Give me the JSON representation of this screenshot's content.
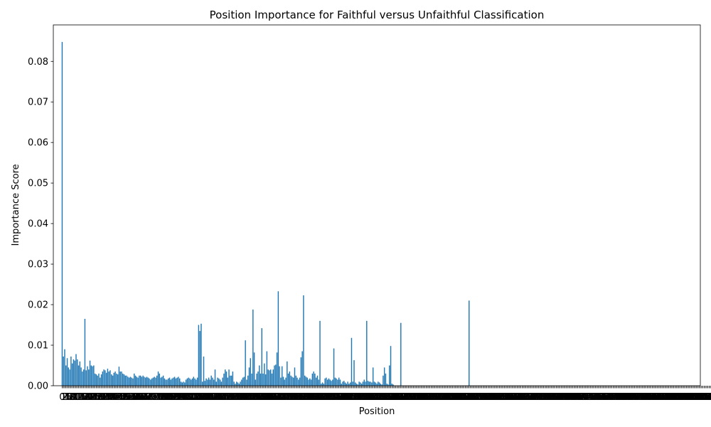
{
  "chart_data": {
    "type": "bar",
    "title": "Position Importance for Faithful versus Unfaithful Classification",
    "xlabel": "Position",
    "ylabel": "Importance Score",
    "ylim": [
      0,
      0.089
    ],
    "yticks": [
      "0.00",
      "0.01",
      "0.02",
      "0.03",
      "0.04",
      "0.05",
      "0.06",
      "0.07",
      "0.08"
    ],
    "ytick_values": [
      0,
      0.01,
      0.02,
      0.03,
      0.04,
      0.05,
      0.06,
      0.07,
      0.08
    ],
    "xlim": [
      -7,
      505
    ],
    "x_tick_step": 1,
    "bar_color": "#1f77b4",
    "grid": false,
    "legend": "none",
    "values": [
      0.0848,
      0.0072,
      0.009,
      0.005,
      0.0068,
      0.0045,
      0.004,
      0.0072,
      0.0055,
      0.0065,
      0.0062,
      0.0078,
      0.0065,
      0.005,
      0.006,
      0.0045,
      0.0035,
      0.004,
      0.0165,
      0.0038,
      0.0048,
      0.004,
      0.0062,
      0.005,
      0.0048,
      0.005,
      0.003,
      0.0028,
      0.0025,
      0.003,
      0.002,
      0.0028,
      0.0035,
      0.004,
      0.0038,
      0.0032,
      0.0042,
      0.0035,
      0.0038,
      0.0028,
      0.0025,
      0.0032,
      0.0035,
      0.003,
      0.0028,
      0.0047,
      0.0035,
      0.0035,
      0.003,
      0.0028,
      0.0025,
      0.0025,
      0.0022,
      0.002,
      0.0022,
      0.002,
      0.0018,
      0.003,
      0.0025,
      0.0022,
      0.002,
      0.0025,
      0.0025,
      0.0022,
      0.0025,
      0.0022,
      0.002,
      0.0022,
      0.002,
      0.0018,
      0.0015,
      0.0018,
      0.002,
      0.0022,
      0.002,
      0.0025,
      0.0035,
      0.003,
      0.002,
      0.0022,
      0.0025,
      0.0018,
      0.0015,
      0.0015,
      0.0018,
      0.002,
      0.0015,
      0.0018,
      0.002,
      0.0022,
      0.0018,
      0.002,
      0.0022,
      0.0018,
      0.001,
      0.0008,
      0.001,
      0.0008,
      0.0015,
      0.0018,
      0.002,
      0.0018,
      0.0015,
      0.0018,
      0.0022,
      0.0018,
      0.0015,
      0.002,
      0.015,
      0.0135,
      0.0153,
      0.001,
      0.0072,
      0.0012,
      0.0018,
      0.0015,
      0.002,
      0.0015,
      0.0025,
      0.002,
      0.0015,
      0.004,
      0.001,
      0.002,
      0.0018,
      0.0015,
      0.001,
      0.002,
      0.003,
      0.004,
      0.0035,
      0.002,
      0.004,
      0.0025,
      0.0025,
      0.0035,
      0.001,
      0.0005,
      0.001,
      0.0008,
      0.0005,
      0.001,
      0.0015,
      0.002,
      0.0022,
      0.0112,
      0.0015,
      0.0025,
      0.0045,
      0.0068,
      0.003,
      0.0188,
      0.0082,
      0.0015,
      0.003,
      0.0035,
      0.005,
      0.003,
      0.0142,
      0.003,
      0.0055,
      0.0028,
      0.0085,
      0.004,
      0.0038,
      0.004,
      0.003,
      0.004,
      0.005,
      0.0052,
      0.0082,
      0.0233,
      0.0048,
      0.002,
      0.0048,
      0.0022,
      0.0015,
      0.002,
      0.006,
      0.003,
      0.0035,
      0.0025,
      0.0022,
      0.002,
      0.0045,
      0.0025,
      0.002,
      0.0015,
      0.002,
      0.007,
      0.0085,
      0.0223,
      0.0025,
      0.0022,
      0.002,
      0.0015,
      0.0018,
      0.0015,
      0.003,
      0.0035,
      0.003,
      0.002,
      0.0025,
      0.0015,
      0.016,
      0.0005,
      0.0008,
      0.0005,
      0.0018,
      0.002,
      0.0015,
      0.0018,
      0.0015,
      0.0012,
      0.0015,
      0.0092,
      0.002,
      0.0018,
      0.0015,
      0.002,
      0.0015,
      0.0005,
      0.001,
      0.0012,
      0.0008,
      0.0005,
      0.001,
      0.0005,
      0.0008,
      0.0118,
      0.001,
      0.0063,
      0.0008,
      0.0005,
      0.0003,
      0.001,
      0.0008,
      0.0005,
      0.001,
      0.0015,
      0.001,
      0.016,
      0.0012,
      0.001,
      0.001,
      0.0008,
      0.0045,
      0.001,
      0.0008,
      0.0005,
      0.001,
      0.0008,
      0.0005,
      0.0003,
      0.0025,
      0.0045,
      0.003,
      0.0005,
      0.0003,
      0.005,
      0.0098,
      0.0005,
      0.0003,
      0,
      0,
      0,
      0,
      0,
      0.0155,
      0,
      0,
      0,
      0,
      0,
      0,
      0,
      0,
      0,
      0,
      0,
      0,
      0,
      0,
      0,
      0,
      0,
      0,
      0,
      0,
      0,
      0,
      0,
      0,
      0,
      0,
      0,
      0,
      0,
      0,
      0,
      0,
      0,
      0,
      0,
      0,
      0,
      0,
      0,
      0,
      0,
      0,
      0,
      0,
      0,
      0,
      0,
      0,
      0,
      0,
      0,
      0,
      0,
      0.021,
      0,
      0,
      0,
      0,
      0,
      0,
      0,
      0,
      0,
      0,
      0,
      0,
      0,
      0,
      0,
      0,
      0,
      0,
      0,
      0,
      0,
      0,
      0,
      0,
      0,
      0,
      0,
      0,
      0,
      0,
      0,
      0,
      0,
      0,
      0,
      0,
      0,
      0,
      0,
      0,
      0,
      0,
      0,
      0,
      0,
      0,
      0,
      0,
      0,
      0,
      0,
      0,
      0,
      0,
      0,
      0,
      0,
      0,
      0,
      0,
      0,
      0,
      0,
      0,
      0,
      0,
      0,
      0,
      0,
      0,
      0,
      0,
      0,
      0,
      0,
      0,
      0,
      0,
      0,
      0,
      0,
      0,
      0,
      0,
      0,
      0,
      0,
      0,
      0,
      0,
      0,
      0,
      0,
      0,
      0,
      0,
      0,
      0,
      0,
      0,
      0,
      0,
      0,
      0,
      0,
      0,
      0,
      0,
      0,
      0,
      0,
      0,
      0,
      0,
      0,
      0,
      0,
      0,
      0,
      0,
      0,
      0,
      0,
      0,
      0,
      0,
      0,
      0,
      0,
      0,
      0,
      0,
      0,
      0,
      0,
      0,
      0,
      0,
      0,
      0,
      0,
      0,
      0,
      0,
      0,
      0,
      0,
      0,
      0,
      0,
      0,
      0,
      0,
      0,
      0,
      0,
      0,
      0,
      0,
      0,
      0,
      0,
      0,
      0,
      0,
      0,
      0,
      0,
      0,
      0,
      0,
      0,
      0,
      0,
      0,
      0,
      0,
      0,
      0,
      0,
      0,
      0,
      0,
      0,
      0,
      0,
      0,
      0,
      0,
      0,
      0,
      0,
      0,
      0,
      0,
      0,
      0,
      0,
      0,
      0,
      0,
      0,
      0,
      0,
      0,
      0,
      0
    ]
  }
}
